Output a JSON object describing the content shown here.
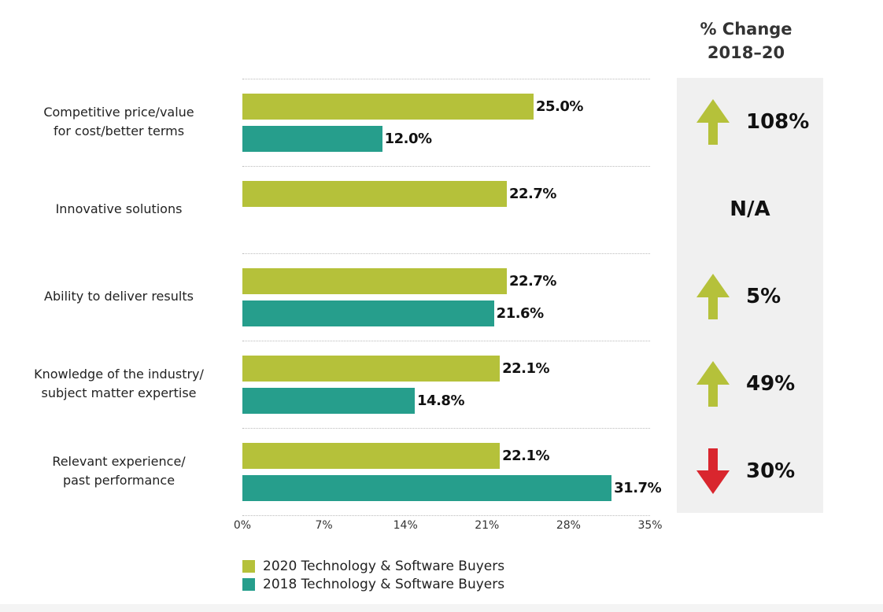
{
  "chart_data": {
    "type": "bar",
    "orientation": "horizontal",
    "categories": [
      "Competitive price/value\nfor cost/better terms",
      "Innovative solutions",
      "Ability to deliver results",
      "Knowledge of the industry/\nsubject matter expertise",
      "Relevant experience/\npast performance"
    ],
    "series": [
      {
        "name": "2020 Technology & Software Buyers",
        "color": "#b5c13a",
        "values": [
          25.0,
          22.7,
          22.7,
          22.1,
          22.1
        ],
        "labels": [
          "25.0%",
          "22.7%",
          "22.7%",
          "22.1%",
          "22.1%"
        ]
      },
      {
        "name": "2018 Technology & Software Buyers",
        "color": "#269e8c",
        "values": [
          12.0,
          null,
          21.6,
          14.8,
          31.7
        ],
        "labels": [
          "12.0%",
          "",
          "21.6%",
          "14.8%",
          "31.7%"
        ]
      }
    ],
    "xlim": [
      0,
      35
    ],
    "xticks": [
      "0%",
      "7%",
      "14%",
      "21%",
      "28%",
      "35%"
    ],
    "grid": true,
    "legend_placement": "bottom-left",
    "change_header": "% Change\n2018–20",
    "changes": [
      {
        "direction": "up",
        "label": "108%"
      },
      {
        "direction": "none",
        "label": "N/A"
      },
      {
        "direction": "up",
        "label": "5%"
      },
      {
        "direction": "up",
        "label": "49%"
      },
      {
        "direction": "down",
        "label": "30%"
      }
    ],
    "colors": {
      "up": "#b5c13a",
      "down": "#d9262e",
      "panel": "#f0f0f0"
    }
  }
}
